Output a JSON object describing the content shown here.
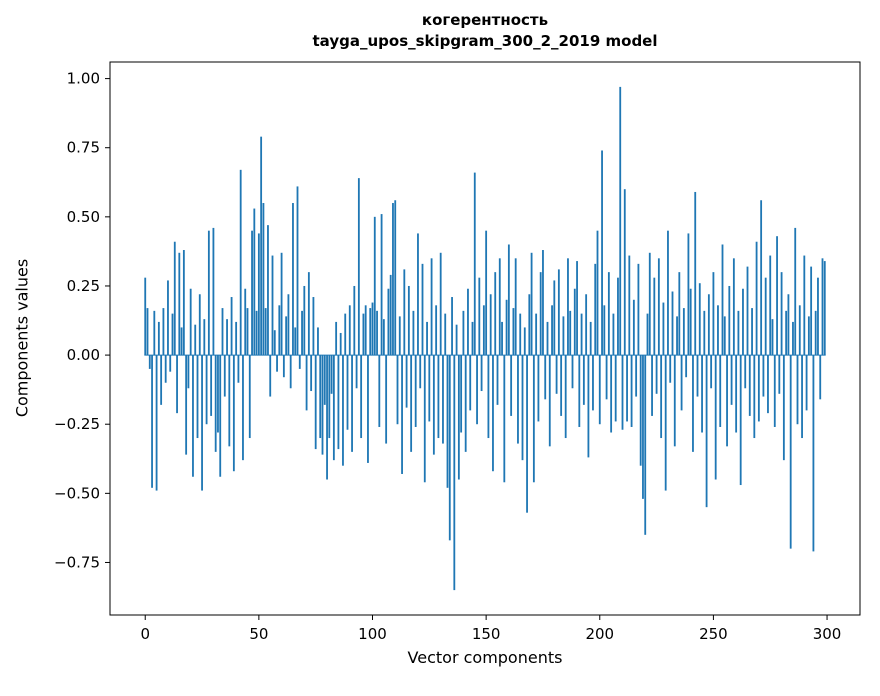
{
  "chart_data": {
    "type": "bar",
    "title_lines": [
      "когерентность",
      "tayga_upos_skipgram_300_2_2019 model"
    ],
    "xlabel": "Vector components",
    "ylabel": "Components values",
    "bar_color": "#1f77b4",
    "xlim": [
      -15.5,
      314.5
    ],
    "ylim": [
      -0.94,
      1.06
    ],
    "x_ticks": [
      0,
      50,
      100,
      150,
      200,
      250,
      300
    ],
    "x_tick_labels": [
      "0",
      "50",
      "100",
      "150",
      "200",
      "250",
      "300"
    ],
    "y_ticks": [
      1.0,
      0.75,
      0.5,
      0.25,
      0.0,
      -0.25,
      -0.5,
      -0.75
    ],
    "y_tick_labels": [
      "1.00",
      "0.75",
      "0.50",
      "0.25",
      "0.00",
      "−0.25",
      "−0.50",
      "−0.75"
    ],
    "values": [
      0.28,
      0.17,
      -0.05,
      -0.48,
      0.16,
      -0.49,
      0.12,
      -0.18,
      0.17,
      -0.1,
      0.27,
      -0.06,
      0.15,
      0.41,
      -0.21,
      0.37,
      0.1,
      0.38,
      -0.36,
      -0.12,
      0.24,
      -0.44,
      0.11,
      -0.3,
      0.22,
      -0.49,
      0.13,
      -0.25,
      0.45,
      -0.22,
      0.46,
      -0.35,
      -0.28,
      -0.44,
      0.17,
      -0.15,
      0.13,
      -0.33,
      0.21,
      -0.42,
      0.12,
      -0.1,
      0.67,
      -0.38,
      0.24,
      0.17,
      -0.3,
      0.45,
      0.53,
      0.16,
      0.44,
      0.79,
      0.55,
      0.17,
      0.47,
      -0.15,
      0.36,
      0.09,
      -0.06,
      0.18,
      0.37,
      -0.08,
      0.14,
      0.22,
      -0.12,
      0.55,
      0.1,
      0.61,
      -0.05,
      0.16,
      0.25,
      -0.2,
      0.3,
      -0.13,
      0.21,
      -0.34,
      0.1,
      -0.3,
      -0.36,
      -0.18,
      -0.45,
      -0.3,
      -0.14,
      -0.38,
      0.12,
      -0.34,
      0.08,
      -0.4,
      0.15,
      -0.27,
      0.18,
      -0.35,
      0.25,
      -0.12,
      0.64,
      -0.3,
      0.15,
      0.18,
      -0.39,
      0.17,
      0.19,
      0.5,
      0.16,
      -0.26,
      0.51,
      0.13,
      -0.32,
      0.24,
      0.29,
      0.55,
      0.56,
      -0.25,
      0.14,
      -0.43,
      0.31,
      -0.19,
      0.25,
      -0.35,
      0.16,
      -0.26,
      0.44,
      -0.12,
      0.33,
      -0.46,
      0.12,
      -0.24,
      0.35,
      -0.36,
      0.18,
      -0.3,
      0.37,
      -0.32,
      0.15,
      -0.48,
      -0.67,
      0.21,
      -0.85,
      0.11,
      -0.45,
      -0.28,
      0.16,
      -0.35,
      0.24,
      -0.2,
      0.12,
      0.66,
      -0.25,
      0.28,
      -0.13,
      0.18,
      0.45,
      -0.3,
      0.22,
      -0.42,
      0.3,
      -0.18,
      0.35,
      0.12,
      -0.46,
      0.2,
      0.4,
      -0.22,
      0.17,
      0.35,
      -0.32,
      0.15,
      -0.38,
      0.1,
      -0.57,
      0.22,
      0.37,
      -0.46,
      0.15,
      -0.24,
      0.3,
      0.38,
      -0.16,
      0.12,
      -0.33,
      0.18,
      0.27,
      -0.14,
      0.31,
      -0.22,
      0.14,
      -0.3,
      0.35,
      0.16,
      -0.12,
      0.24,
      0.34,
      -0.26,
      0.15,
      -0.18,
      0.22,
      -0.37,
      0.12,
      -0.2,
      0.33,
      0.45,
      -0.25,
      0.74,
      0.18,
      -0.16,
      0.3,
      -0.28,
      0.15,
      -0.24,
      0.28,
      0.97,
      -0.27,
      0.6,
      -0.24,
      0.36,
      -0.26,
      0.2,
      -0.15,
      0.33,
      -0.4,
      -0.52,
      -0.65,
      0.15,
      0.37,
      -0.22,
      0.28,
      -0.14,
      0.35,
      -0.3,
      0.19,
      -0.49,
      0.45,
      -0.1,
      0.23,
      -0.33,
      0.14,
      0.3,
      -0.2,
      0.17,
      -0.08,
      0.44,
      0.24,
      -0.35,
      0.59,
      -0.15,
      0.26,
      -0.28,
      0.16,
      -0.55,
      0.22,
      -0.12,
      0.3,
      -0.45,
      0.18,
      -0.26,
      0.4,
      0.14,
      -0.33,
      0.25,
      -0.18,
      0.35,
      -0.28,
      0.16,
      -0.47,
      0.24,
      -0.12,
      0.32,
      -0.22,
      0.17,
      -0.3,
      0.41,
      -0.24,
      0.56,
      -0.15,
      0.28,
      -0.21,
      0.36,
      0.13,
      -0.26,
      0.43,
      -0.14,
      0.3,
      -0.38,
      0.16,
      0.22,
      -0.7,
      0.12,
      0.46,
      -0.25,
      0.18,
      -0.3,
      0.36,
      -0.2,
      0.14,
      0.32,
      -0.71,
      0.16,
      0.28,
      -0.16,
      0.35,
      0.34
    ]
  }
}
